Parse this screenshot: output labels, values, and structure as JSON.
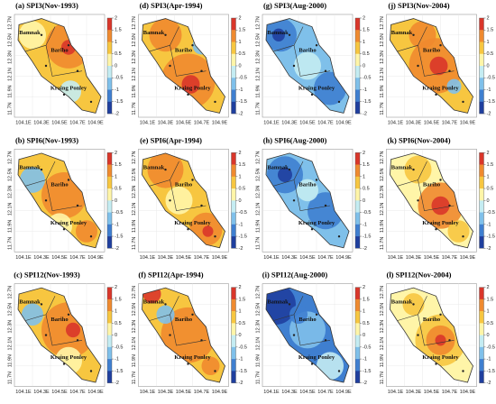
{
  "panels": [
    {
      "title": "(a) SPI3(Nov-1993)"
    },
    {
      "title": "(d) SPI3(Apr-1994)"
    },
    {
      "title": "(g) SPI3(Aug-2000)"
    },
    {
      "title": "(j) SPI3(Nov-2004)"
    },
    {
      "title": "(b) SPI6(Nov-1993)"
    },
    {
      "title": "(e) SPI6(Apr-1994)"
    },
    {
      "title": "(h) SPI6(Aug-2000)"
    },
    {
      "title": "(k) SPI6(Nov-2004)"
    },
    {
      "title": "(c) SPI12(Nov-1993)"
    },
    {
      "title": "(f) SPI12(Apr-1994)"
    },
    {
      "title": "(i) SPI12(Aug-2000)"
    },
    {
      "title": "(l) SPI12(Nov-2004)"
    }
  ],
  "places": [
    "Bamnak",
    "Bariho",
    "Kraing Ponley"
  ],
  "xticks": [
    "104.1E",
    "104.3E",
    "104.5E",
    "104.7E",
    "104.9E"
  ],
  "yticks": [
    "12.7N",
    "12.5N",
    "12.3N",
    "12.1N",
    "11.9N",
    "11.7N"
  ],
  "colorbar": {
    "ticks": [
      2,
      1.5,
      1,
      0.5,
      0,
      -0.5,
      -1,
      -1.5,
      -2
    ],
    "colors": [
      "#1f3f9e",
      "#3f7fd0",
      "#7fc0ea",
      "#c4ecf2",
      "#fff5a8",
      "#f7c640",
      "#ef8a2f",
      "#d9362a"
    ]
  }
}
